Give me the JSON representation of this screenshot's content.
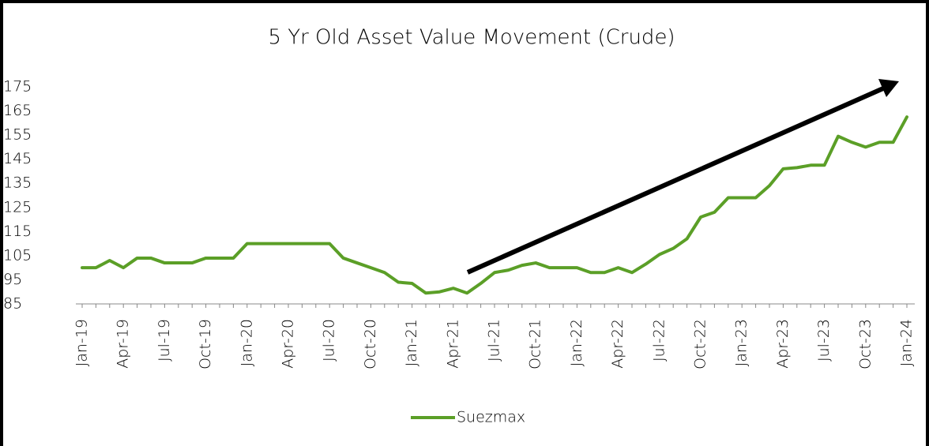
{
  "chart_data": {
    "type": "line",
    "title": "5 Yr Old Asset Value Movement (Crude)",
    "categories": [
      "Jan-19",
      null,
      null,
      "Apr-19",
      null,
      null,
      "Jul-19",
      null,
      null,
      "Oct-19",
      null,
      null,
      "Jan-20",
      null,
      null,
      "Apr-20",
      null,
      null,
      "Jul-20",
      null,
      null,
      "Oct-20",
      null,
      null,
      "Jan-21",
      null,
      null,
      "Apr-21",
      null,
      null,
      "Jul-21",
      null,
      null,
      "Oct-21",
      null,
      null,
      "Jan-22",
      null,
      null,
      "Apr-22",
      null,
      null,
      "Jul-22",
      null,
      null,
      "Oct-22",
      null,
      null,
      "Jan-23",
      null,
      null,
      "Apr-23",
      null,
      null,
      "Jul-23",
      null,
      null,
      "Oct-23",
      null,
      null,
      "Jan-24"
    ],
    "series": [
      {
        "name": "Suezmax",
        "color": "#5b9f27",
        "values": [
          100,
          100,
          103,
          100,
          104,
          104,
          102,
          102,
          102,
          104,
          104,
          104,
          110,
          110,
          110,
          110,
          110,
          110,
          110,
          104,
          102,
          100,
          98,
          94,
          93.5,
          89.5,
          90,
          91.5,
          89.5,
          93.5,
          98,
          99,
          101,
          102,
          100,
          100,
          100,
          98,
          98,
          100,
          98,
          101.5,
          105.5,
          108,
          112,
          121,
          123,
          129,
          129,
          129,
          134,
          141,
          141.5,
          142.5,
          142.5,
          154.5,
          152,
          150,
          152,
          152,
          162.5
        ]
      }
    ],
    "ylim": [
      85,
      175
    ],
    "yticks": [
      85,
      95,
      105,
      115,
      125,
      135,
      145,
      155,
      165,
      175
    ],
    "grid": false,
    "legend": "bottom"
  }
}
